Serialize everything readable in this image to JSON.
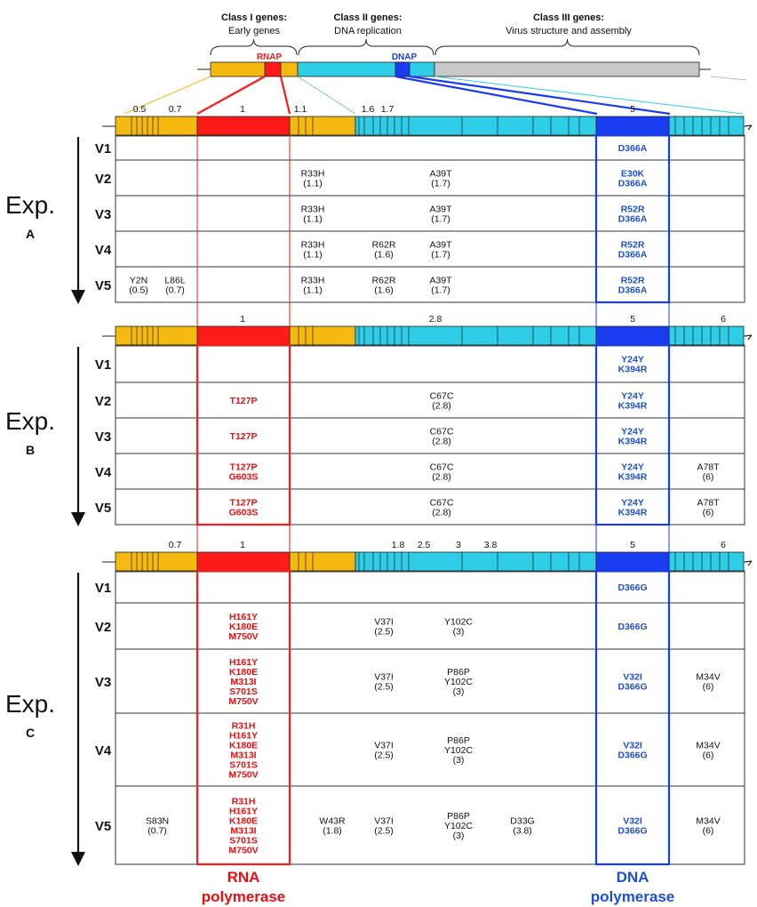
{
  "top_classes": [
    {
      "title": "Class I genes:",
      "subtitle": "Early genes"
    },
    {
      "title": "Class II genes:",
      "subtitle": "DNA replication"
    },
    {
      "title": "Class III genes:",
      "subtitle": "Virus structure and assembly"
    }
  ],
  "top_labels": {
    "rnap": "RNAP",
    "dnap": "DNAP"
  },
  "colors": {
    "class1": "#f5b90f",
    "class2": "#2ecde8",
    "class3": "#c8c8c8",
    "rnap": "#ff1a1a",
    "dnap": "#1a3cf0",
    "mut_rnap": "#e81010",
    "mut_dnap": "#1e4fd9",
    "text": "#111111"
  },
  "experiments": [
    {
      "label_line1": "Exp.",
      "label_line2": "A",
      "gene_labels": [
        "0.5",
        "0.7",
        "1",
        "1.1",
        "1.6",
        "1.7",
        "5"
      ],
      "rows": [
        {
          "version": "V1",
          "cells": [
            {
              "lines": [
                "D366A"
              ],
              "kind": "dnap"
            }
          ]
        },
        {
          "version": "V2",
          "cells": [
            {
              "lines": [
                "R33H",
                "(1.1)"
              ],
              "kind": "other"
            },
            {
              "lines": [
                "A39T",
                "(1.7)"
              ],
              "kind": "other"
            },
            {
              "lines": [
                "E30K",
                "D366A"
              ],
              "kind": "dnap"
            }
          ]
        },
        {
          "version": "V3",
          "cells": [
            {
              "lines": [
                "R33H",
                "(1.1)"
              ],
              "kind": "other"
            },
            {
              "lines": [
                "A39T",
                "(1.7)"
              ],
              "kind": "other"
            },
            {
              "lines": [
                "R52R",
                "D366A"
              ],
              "kind": "dnap"
            }
          ]
        },
        {
          "version": "V4",
          "cells": [
            {
              "lines": [
                "R33H",
                "(1.1)"
              ],
              "kind": "other"
            },
            {
              "lines": [
                "R62R",
                "(1.6)"
              ],
              "kind": "other"
            },
            {
              "lines": [
                "A39T",
                "(1.7)"
              ],
              "kind": "other"
            },
            {
              "lines": [
                "R52R",
                "D366A"
              ],
              "kind": "dnap"
            }
          ]
        },
        {
          "version": "V5",
          "cells": [
            {
              "lines": [
                "Y2N",
                "(0.5)"
              ],
              "kind": "other"
            },
            {
              "lines": [
                "L86L",
                "(0.7)"
              ],
              "kind": "other"
            },
            {
              "lines": [
                "R33H",
                "(1.1)"
              ],
              "kind": "other"
            },
            {
              "lines": [
                "R62R",
                "(1.6)"
              ],
              "kind": "other"
            },
            {
              "lines": [
                "A39T",
                "(1.7)"
              ],
              "kind": "other"
            },
            {
              "lines": [
                "R52R",
                "D366A"
              ],
              "kind": "dnap"
            }
          ]
        }
      ]
    },
    {
      "label_line1": "Exp.",
      "label_line2": "B",
      "gene_labels": [
        "1",
        "2.8",
        "5",
        "6"
      ],
      "rows": [
        {
          "version": "V1",
          "cells": [
            {
              "lines": [
                "Y24Y",
                "K394R"
              ],
              "kind": "dnap"
            }
          ]
        },
        {
          "version": "V2",
          "cells": [
            {
              "lines": [
                "T127P"
              ],
              "kind": "rnap"
            },
            {
              "lines": [
                "C67C",
                "(2.8)"
              ],
              "kind": "other"
            },
            {
              "lines": [
                "Y24Y",
                "K394R"
              ],
              "kind": "dnap"
            }
          ]
        },
        {
          "version": "V3",
          "cells": [
            {
              "lines": [
                "T127P"
              ],
              "kind": "rnap"
            },
            {
              "lines": [
                "C67C",
                "(2.8)"
              ],
              "kind": "other"
            },
            {
              "lines": [
                "Y24Y",
                "K394R"
              ],
              "kind": "dnap"
            }
          ]
        },
        {
          "version": "V4",
          "cells": [
            {
              "lines": [
                "T127P",
                "G603S"
              ],
              "kind": "rnap"
            },
            {
              "lines": [
                "C67C",
                "(2.8)"
              ],
              "kind": "other"
            },
            {
              "lines": [
                "Y24Y",
                "K394R"
              ],
              "kind": "dnap"
            },
            {
              "lines": [
                "A78T",
                "(6)"
              ],
              "kind": "other"
            }
          ]
        },
        {
          "version": "V5",
          "cells": [
            {
              "lines": [
                "T127P",
                "G603S"
              ],
              "kind": "rnap"
            },
            {
              "lines": [
                "C67C",
                "(2.8)"
              ],
              "kind": "other"
            },
            {
              "lines": [
                "Y24Y",
                "K394R"
              ],
              "kind": "dnap"
            },
            {
              "lines": [
                "A78T",
                "(6)"
              ],
              "kind": "other"
            }
          ]
        }
      ]
    },
    {
      "label_line1": "Exp.",
      "label_line2": "C",
      "gene_labels": [
        "0.7",
        "1",
        "1.8",
        "2.5",
        "3",
        "3.8",
        "5",
        "6"
      ],
      "rows": [
        {
          "version": "V1",
          "cells": [
            {
              "lines": [
                "D366G"
              ],
              "kind": "dnap"
            }
          ]
        },
        {
          "version": "V2",
          "cells": [
            {
              "lines": [
                "H161Y",
                "K180E",
                "M750V"
              ],
              "kind": "rnap"
            },
            {
              "lines": [
                "V37I",
                "(2.5)"
              ],
              "kind": "other"
            },
            {
              "lines": [
                "Y102C",
                "(3)"
              ],
              "kind": "other"
            },
            {
              "lines": [
                "D366G"
              ],
              "kind": "dnap"
            }
          ]
        },
        {
          "version": "V3",
          "cells": [
            {
              "lines": [
                "H161Y",
                "K180E",
                "M313I",
                "S701S",
                "M750V"
              ],
              "kind": "rnap"
            },
            {
              "lines": [
                "V37I",
                "(2.5)"
              ],
              "kind": "other"
            },
            {
              "lines": [
                "P86P",
                "Y102C",
                "(3)"
              ],
              "kind": "other"
            },
            {
              "lines": [
                "V32I",
                "D366G"
              ],
              "kind": "dnap"
            },
            {
              "lines": [
                "M34V",
                "(6)"
              ],
              "kind": "other"
            }
          ]
        },
        {
          "version": "V4",
          "cells": [
            {
              "lines": [
                "R31H",
                "H161Y",
                "K180E",
                "M313I",
                "S701S",
                "M750V"
              ],
              "kind": "rnap"
            },
            {
              "lines": [
                "V37I",
                "(2.5)"
              ],
              "kind": "other"
            },
            {
              "lines": [
                "P86P",
                "Y102C",
                "(3)"
              ],
              "kind": "other"
            },
            {
              "lines": [
                "V32I",
                "D366G"
              ],
              "kind": "dnap"
            },
            {
              "lines": [
                "M34V",
                "(6)"
              ],
              "kind": "other"
            }
          ]
        },
        {
          "version": "V5",
          "cells": [
            {
              "lines": [
                "S83N",
                "(0.7)"
              ],
              "kind": "other"
            },
            {
              "lines": [
                "R31H",
                "H161Y",
                "K180E",
                "M313I",
                "S701S",
                "M750V"
              ],
              "kind": "rnap"
            },
            {
              "lines": [
                "W43R",
                "(1.8)"
              ],
              "kind": "other"
            },
            {
              "lines": [
                "V37I",
                "(2.5)"
              ],
              "kind": "other"
            },
            {
              "lines": [
                "P86P",
                "Y102C",
                "(3)"
              ],
              "kind": "other"
            },
            {
              "lines": [
                "D33G",
                "(3.8)"
              ],
              "kind": "other"
            },
            {
              "lines": [
                "V32I",
                "D366G"
              ],
              "kind": "dnap"
            },
            {
              "lines": [
                "M34V",
                "(6)"
              ],
              "kind": "other"
            }
          ]
        }
      ]
    }
  ],
  "bottom_labels": {
    "rna": {
      "line1": "RNA",
      "line2": "polymerase"
    },
    "dna": {
      "line1": "DNA",
      "line2": "polymerase"
    }
  }
}
